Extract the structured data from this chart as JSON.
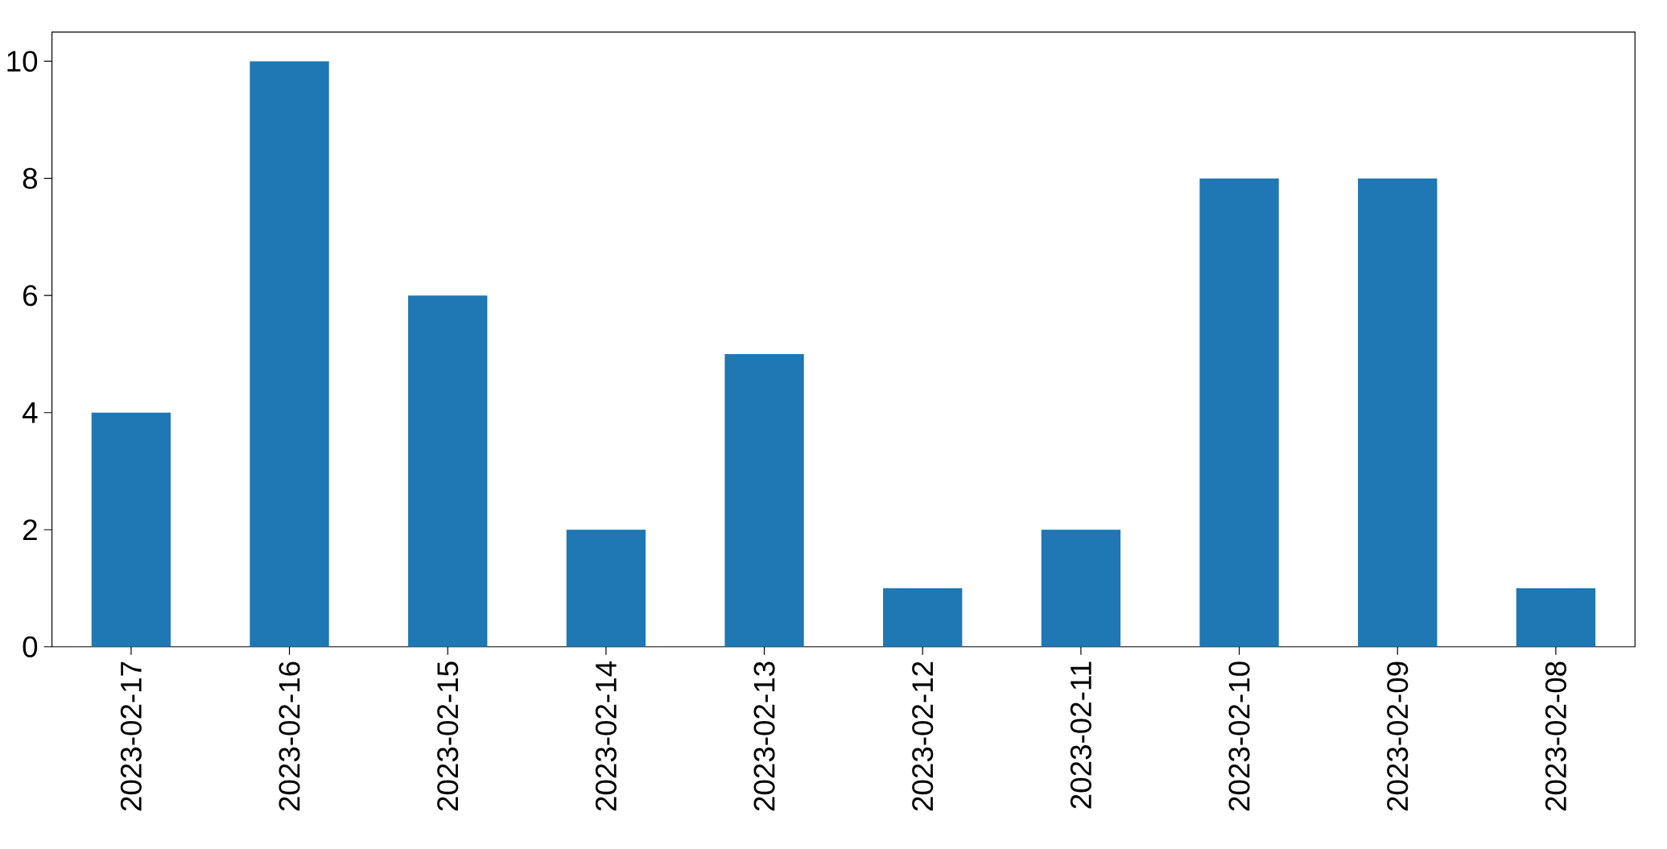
{
  "chart_data": {
    "type": "bar",
    "categories": [
      "2023-02-17",
      "2023-02-16",
      "2023-02-15",
      "2023-02-14",
      "2023-02-13",
      "2023-02-12",
      "2023-02-11",
      "2023-02-10",
      "2023-02-09",
      "2023-02-08"
    ],
    "values": [
      4,
      10,
      6,
      2,
      5,
      1,
      2,
      8,
      8,
      1
    ],
    "color": "#1f77b4",
    "ylim": [
      0,
      10.5
    ],
    "yticks": [
      0,
      2,
      4,
      6,
      8,
      10
    ]
  }
}
